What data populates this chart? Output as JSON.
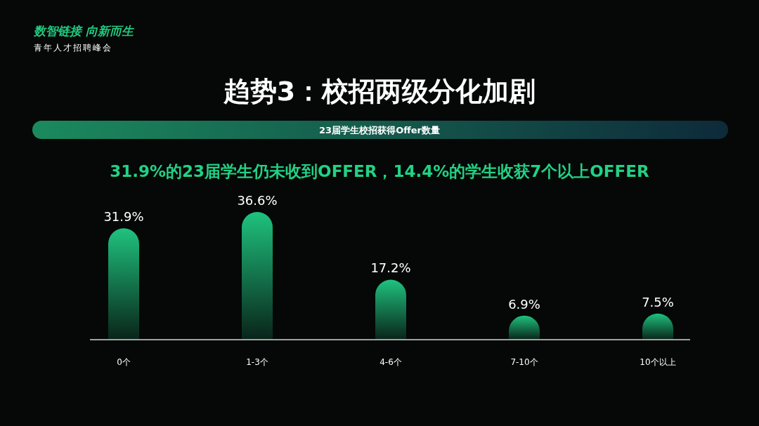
{
  "chart_data": {
    "type": "bar",
    "title": "趋势3：校招两级分化加剧",
    "subtitle": "23届学生校招获得Offer数量",
    "annotations": [
      "数智链接 向新而生",
      "青年人才招聘峰会",
      "31.9%的23届学生仍未收到OFFER，14.4%的学生收获7个以上OFFER"
    ],
    "categories": [
      "0个",
      "1-3个",
      "4-6个",
      "7-10个",
      "10个以上"
    ],
    "values": [
      31.9,
      36.6,
      17.2,
      6.9,
      7.5
    ],
    "value_labels": [
      "31.9%",
      "36.6%",
      "17.2%",
      "6.9%",
      "7.5%"
    ],
    "color": "#1fc27e",
    "tick_labels": "x"
  }
}
